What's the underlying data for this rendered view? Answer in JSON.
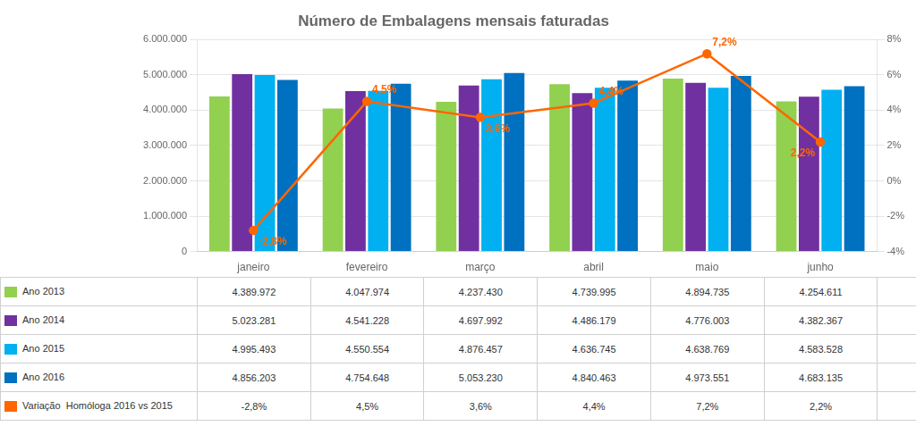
{
  "chart_data": {
    "type": "bar",
    "title": "Número de Embalagens mensais faturadas",
    "categories": [
      "janeiro",
      "fevereiro",
      "março",
      "abril",
      "maio",
      "junho"
    ],
    "series": [
      {
        "name": "Ano 2013",
        "color": "#92d050",
        "values": [
          4389972,
          4047974,
          4237430,
          4739995,
          4894735,
          4254611
        ],
        "value_labels": [
          "4.389.972",
          "4.047.974",
          "4.237.430",
          "4.739.995",
          "4.894.735",
          "4.254.611"
        ]
      },
      {
        "name": "Ano 2014",
        "color": "#7030a0",
        "values": [
          5023281,
          4541228,
          4697992,
          4486179,
          4776003,
          4382367
        ],
        "value_labels": [
          "5.023.281",
          "4.541.228",
          "4.697.992",
          "4.486.179",
          "4.776.003",
          "4.382.367"
        ]
      },
      {
        "name": "Ano 2015",
        "color": "#00b0f0",
        "values": [
          4995493,
          4550554,
          4876457,
          4636745,
          4638769,
          4583528
        ],
        "value_labels": [
          "4.995.493",
          "4.550.554",
          "4.876.457",
          "4.636.745",
          "4.638.769",
          "4.583.528"
        ]
      },
      {
        "name": "Ano 2016",
        "color": "#0070c0",
        "values": [
          4856203,
          4754648,
          5053230,
          4840463,
          4973551,
          4683135
        ],
        "value_labels": [
          "4.856.203",
          "4.754.648",
          "5.053.230",
          "4.840.463",
          "4.973.551",
          "4.683.135"
        ]
      },
      {
        "name": "Variação  Homóloga 2016 vs 2015",
        "type": "line",
        "axis": "y2",
        "color": "#ff6600",
        "marker": "circle",
        "values": [
          -2.8,
          4.5,
          3.6,
          4.4,
          7.2,
          2.2
        ],
        "value_labels": [
          "-2,8%",
          "4,5%",
          "3,6%",
          "4,4%",
          "7,2%",
          "2,2%"
        ]
      }
    ],
    "ylim": [
      0,
      6000000
    ],
    "yticks": [
      0,
      {
        "value": 1000000,
        "label": "1.000.000"
      },
      {
        "value": 2000000,
        "label": "2.000.000"
      },
      {
        "value": 3000000,
        "label": "3.000.000"
      },
      {
        "value": 4000000,
        "label": "4.000.000"
      },
      {
        "value": 5000000,
        "label": "5.000.000"
      },
      {
        "value": 6000000,
        "label": "6.000.000"
      }
    ],
    "y2lim": [
      -4,
      8
    ],
    "y2ticks": [
      {
        "value": -4,
        "label": "-4%"
      },
      {
        "value": -2,
        "label": "-2%"
      },
      {
        "value": 0,
        "label": "0%"
      },
      {
        "value": 2,
        "label": "2%"
      },
      {
        "value": 4,
        "label": "4%"
      },
      {
        "value": 6,
        "label": "6%"
      },
      {
        "value": 8,
        "label": "8%"
      }
    ],
    "grid": true,
    "data_labels": true
  }
}
